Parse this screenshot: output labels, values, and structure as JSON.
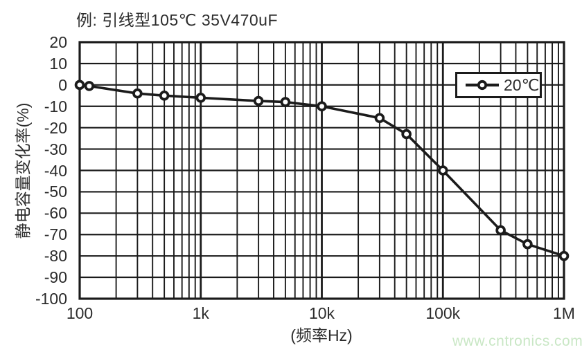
{
  "watermark": "www.cntronics.com",
  "colors": {
    "line": "#1b1b1b",
    "grid": "#1b1b1b",
    "marker_fill": "#ffffff",
    "text": "#2c2c2c",
    "watermark": "#c9e7c5",
    "background": "#ffffff"
  },
  "chart_data": {
    "type": "line",
    "title": "例: 引线型105℃ 35V470uF",
    "xlabel": "(频率Hz)",
    "ylabel": "静电容量变化率(%)",
    "x_scale": "log",
    "xlim": [
      100,
      1000000
    ],
    "ylim": [
      -100,
      20
    ],
    "grid": "on (log minor vertical gridlines, horizontal every 10)",
    "legend": {
      "label": "20℃",
      "position": "top-right",
      "marker": "line-with-open-circle"
    },
    "x_ticks": [
      {
        "value": 100,
        "label": "100"
      },
      {
        "value": 1000,
        "label": "1k"
      },
      {
        "value": 10000,
        "label": "10k"
      },
      {
        "value": 100000,
        "label": "100k"
      },
      {
        "value": 1000000,
        "label": "1M"
      }
    ],
    "y_ticks": [
      {
        "value": 20,
        "label": "20"
      },
      {
        "value": 10,
        "label": "10"
      },
      {
        "value": 0,
        "label": "0"
      },
      {
        "value": -10,
        "label": "-10"
      },
      {
        "value": -20,
        "label": "-20"
      },
      {
        "value": -30,
        "label": "-30"
      },
      {
        "value": -40,
        "label": "-40"
      },
      {
        "value": -50,
        "label": "-50"
      },
      {
        "value": -60,
        "label": "-60"
      },
      {
        "value": -70,
        "label": "-70"
      },
      {
        "value": -80,
        "label": "-80"
      },
      {
        "value": -90,
        "label": "-90"
      },
      {
        "value": -100,
        "label": "-100"
      }
    ],
    "series": [
      {
        "name": "20℃",
        "x": [
          100,
          120,
          300,
          500,
          1000,
          3000,
          5000,
          10000,
          30000,
          50000,
          100000,
          300000,
          500000,
          1000000
        ],
        "y": [
          0,
          -0.5,
          -4,
          -5,
          -6,
          -7.5,
          -8,
          -10,
          -15.5,
          -23,
          -40,
          -68,
          -74.5,
          -80
        ]
      }
    ]
  }
}
